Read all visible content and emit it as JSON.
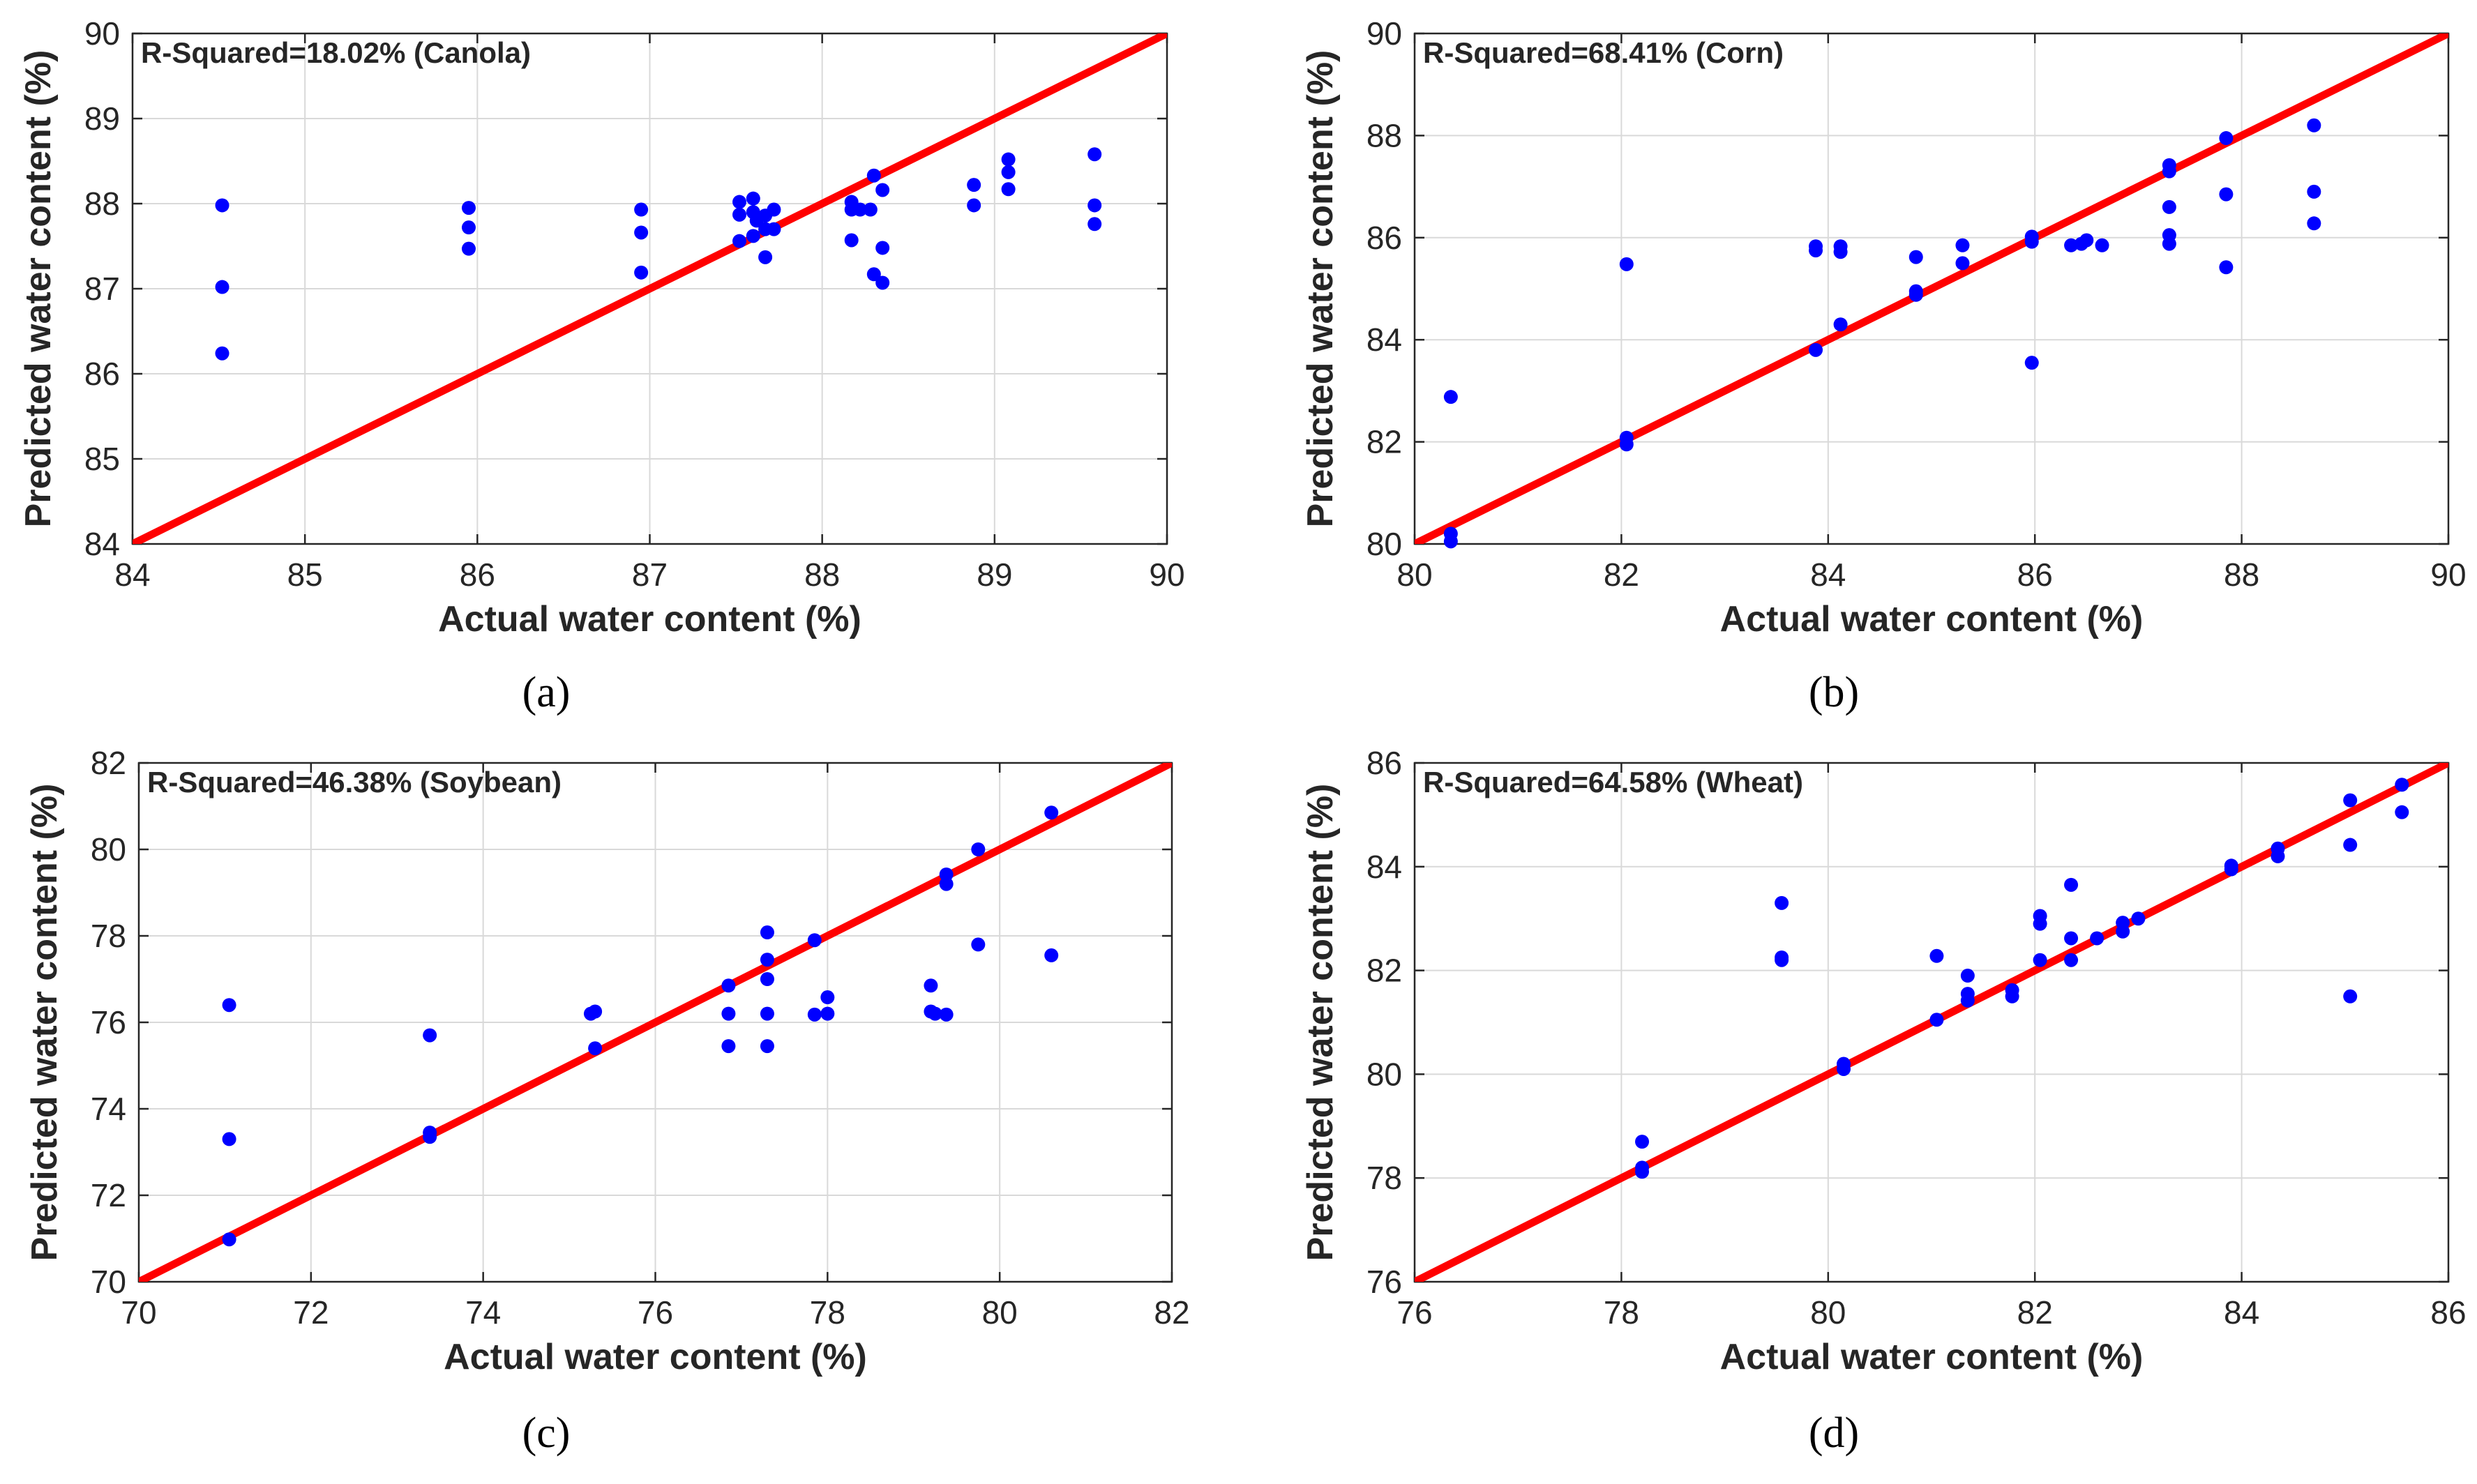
{
  "figure": {
    "colors": {
      "point": "#0000ff",
      "fit_line": "#ff0000",
      "grid": "#d9d9d9",
      "axis": "#262626",
      "text": "#262626"
    }
  },
  "chart_data": [
    {
      "type": "scatter",
      "panel_label": "(a)",
      "title": "R-Squared=18.02% (Canola)",
      "xlabel": "Actual water content (%)",
      "ylabel": "Predicted water content (%)",
      "xlim": [
        84,
        90
      ],
      "ylim": [
        84,
        90
      ],
      "xticks": [
        84,
        85,
        86,
        87,
        88,
        89,
        90
      ],
      "yticks": [
        84,
        85,
        86,
        87,
        88,
        89,
        90
      ],
      "grid": true,
      "fit_line": [
        [
          84,
          84
        ],
        [
          90,
          90
        ]
      ],
      "points": [
        [
          84.52,
          87.98
        ],
        [
          84.52,
          87.02
        ],
        [
          84.52,
          86.24
        ],
        [
          85.95,
          87.95
        ],
        [
          85.95,
          87.72
        ],
        [
          85.95,
          87.47
        ],
        [
          86.95,
          87.93
        ],
        [
          86.95,
          87.66
        ],
        [
          86.95,
          87.19
        ],
        [
          87.52,
          88.02
        ],
        [
          87.52,
          87.87
        ],
        [
          87.52,
          87.56
        ],
        [
          87.6,
          88.06
        ],
        [
          87.6,
          87.9
        ],
        [
          87.6,
          87.62
        ],
        [
          87.62,
          87.8
        ],
        [
          87.67,
          87.7
        ],
        [
          87.67,
          87.86
        ],
        [
          87.67,
          87.37
        ],
        [
          87.72,
          87.93
        ],
        [
          87.72,
          87.7
        ],
        [
          88.17,
          88.02
        ],
        [
          88.17,
          87.93
        ],
        [
          88.17,
          87.57
        ],
        [
          88.22,
          87.93
        ],
        [
          88.28,
          87.93
        ],
        [
          88.3,
          88.33
        ],
        [
          88.3,
          87.17
        ],
        [
          88.35,
          88.16
        ],
        [
          88.35,
          87.48
        ],
        [
          88.35,
          87.07
        ],
        [
          88.88,
          88.22
        ],
        [
          88.88,
          87.98
        ],
        [
          89.08,
          88.52
        ],
        [
          89.08,
          88.37
        ],
        [
          89.08,
          88.17
        ],
        [
          89.58,
          88.58
        ],
        [
          89.58,
          87.98
        ],
        [
          89.58,
          87.76
        ]
      ]
    },
    {
      "type": "scatter",
      "panel_label": "(b)",
      "title": "R-Squared=68.41% (Corn)",
      "xlabel": "Actual water content (%)",
      "ylabel": "Predicted water content (%)",
      "xlim": [
        80,
        90
      ],
      "ylim": [
        80,
        90
      ],
      "xticks": [
        80,
        82,
        84,
        86,
        88,
        90
      ],
      "yticks": [
        80,
        82,
        84,
        86,
        88,
        90
      ],
      "grid": true,
      "fit_line": [
        [
          80,
          80
        ],
        [
          90,
          90
        ]
      ],
      "points": [
        [
          80.35,
          82.88
        ],
        [
          80.35,
          80.2
        ],
        [
          80.35,
          80.05
        ],
        [
          82.05,
          85.48
        ],
        [
          82.05,
          82.08
        ],
        [
          82.05,
          81.95
        ],
        [
          83.88,
          85.83
        ],
        [
          83.88,
          85.75
        ],
        [
          83.88,
          83.8
        ],
        [
          84.12,
          85.83
        ],
        [
          84.12,
          85.72
        ],
        [
          84.12,
          84.3
        ],
        [
          84.85,
          85.62
        ],
        [
          84.85,
          84.95
        ],
        [
          84.85,
          84.88
        ],
        [
          85.3,
          85.85
        ],
        [
          85.3,
          85.5
        ],
        [
          85.97,
          86.02
        ],
        [
          85.97,
          85.92
        ],
        [
          85.97,
          83.55
        ],
        [
          86.35,
          85.85
        ],
        [
          86.45,
          85.88
        ],
        [
          86.5,
          85.95
        ],
        [
          86.65,
          85.85
        ],
        [
          87.3,
          87.42
        ],
        [
          87.3,
          87.3
        ],
        [
          87.3,
          86.6
        ],
        [
          87.3,
          86.05
        ],
        [
          87.3,
          85.88
        ],
        [
          87.85,
          87.95
        ],
        [
          87.85,
          86.85
        ],
        [
          87.85,
          85.42
        ],
        [
          88.7,
          88.2
        ],
        [
          88.7,
          86.9
        ],
        [
          88.7,
          86.28
        ]
      ]
    },
    {
      "type": "scatter",
      "panel_label": "(c)",
      "title": "R-Squared=46.38% (Soybean)",
      "xlabel": "Actual water content (%)",
      "ylabel": "Predicted water content (%)",
      "xlim": [
        70,
        82
      ],
      "ylim": [
        70,
        82
      ],
      "xticks": [
        70,
        72,
        74,
        76,
        78,
        80,
        82
      ],
      "yticks": [
        70,
        72,
        74,
        76,
        78,
        80,
        82
      ],
      "grid": true,
      "fit_line": [
        [
          70,
          70
        ],
        [
          82,
          82
        ]
      ],
      "points": [
        [
          71.05,
          76.4
        ],
        [
          71.05,
          73.3
        ],
        [
          71.05,
          70.98
        ],
        [
          73.38,
          75.7
        ],
        [
          73.38,
          73.45
        ],
        [
          73.38,
          73.35
        ],
        [
          75.25,
          76.2
        ],
        [
          75.3,
          76.25
        ],
        [
          75.3,
          75.4
        ],
        [
          76.85,
          76.85
        ],
        [
          76.85,
          76.2
        ],
        [
          76.85,
          75.45
        ],
        [
          77.3,
          78.08
        ],
        [
          77.3,
          77.45
        ],
        [
          77.3,
          77.0
        ],
        [
          77.3,
          76.2
        ],
        [
          77.3,
          75.45
        ],
        [
          77.85,
          77.9
        ],
        [
          77.85,
          76.18
        ],
        [
          78.0,
          76.58
        ],
        [
          78.0,
          76.2
        ],
        [
          79.2,
          76.85
        ],
        [
          79.2,
          76.25
        ],
        [
          79.25,
          76.2
        ],
        [
          79.38,
          79.42
        ],
        [
          79.38,
          79.2
        ],
        [
          79.38,
          76.18
        ],
        [
          79.75,
          80.0
        ],
        [
          79.75,
          77.8
        ],
        [
          80.6,
          80.85
        ],
        [
          80.6,
          77.55
        ]
      ]
    },
    {
      "type": "scatter",
      "panel_label": "(d)",
      "title": "R-Squared=64.58% (Wheat)",
      "xlabel": "Actual water content (%)",
      "ylabel": "Predicted water content (%)",
      "xlim": [
        76,
        86
      ],
      "ylim": [
        76,
        86
      ],
      "xticks": [
        76,
        78,
        80,
        82,
        84,
        86
      ],
      "yticks": [
        76,
        78,
        80,
        82,
        84,
        86
      ],
      "grid": true,
      "fit_line": [
        [
          76,
          76
        ],
        [
          86,
          86
        ]
      ],
      "points": [
        [
          78.2,
          78.7
        ],
        [
          78.2,
          78.2
        ],
        [
          78.2,
          78.12
        ],
        [
          79.55,
          83.3
        ],
        [
          79.55,
          82.25
        ],
        [
          79.55,
          82.2
        ],
        [
          80.15,
          80.2
        ],
        [
          80.15,
          80.1
        ],
        [
          81.05,
          82.28
        ],
        [
          81.05,
          81.05
        ],
        [
          81.35,
          81.9
        ],
        [
          81.35,
          81.55
        ],
        [
          81.35,
          81.42
        ],
        [
          81.78,
          81.62
        ],
        [
          81.78,
          81.5
        ],
        [
          82.05,
          83.05
        ],
        [
          82.05,
          82.9
        ],
        [
          82.05,
          82.2
        ],
        [
          82.35,
          83.65
        ],
        [
          82.35,
          82.62
        ],
        [
          82.35,
          82.2
        ],
        [
          82.6,
          82.62
        ],
        [
          82.85,
          82.92
        ],
        [
          82.85,
          82.75
        ],
        [
          83.0,
          83.0
        ],
        [
          83.9,
          84.02
        ],
        [
          83.9,
          83.95
        ],
        [
          84.35,
          84.35
        ],
        [
          84.35,
          84.2
        ],
        [
          85.05,
          85.28
        ],
        [
          85.05,
          84.42
        ],
        [
          85.05,
          81.5
        ],
        [
          85.55,
          85.58
        ],
        [
          85.55,
          85.05
        ]
      ]
    }
  ]
}
